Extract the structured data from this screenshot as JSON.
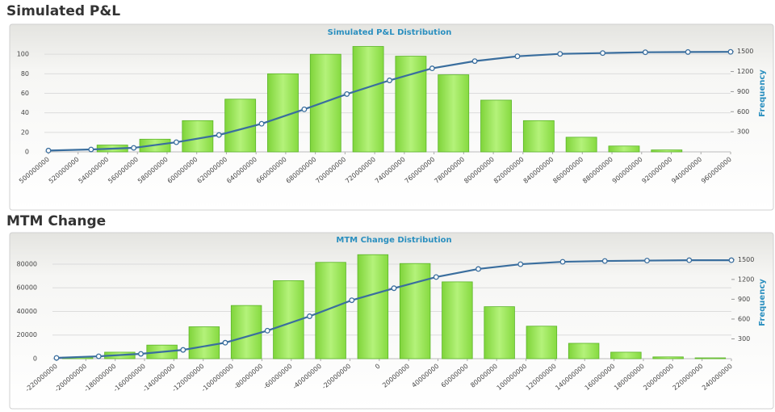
{
  "headings": [
    "Simulated P&L",
    "MTM Change"
  ],
  "chart_data": [
    {
      "type": "histogram",
      "title": "Simulated P&L Distribution",
      "y2_label": "Frequency",
      "bins": [
        500000000,
        528750000,
        557500000,
        586250000,
        615000000,
        643750000,
        672500000,
        701250000,
        730000000,
        758750000,
        787500000,
        816250000,
        845000000,
        873750000,
        902500000,
        931250000,
        960000000
      ],
      "counts": [
        0,
        7,
        13,
        32,
        54,
        80,
        100,
        108,
        98,
        79,
        53,
        32,
        15,
        6,
        2,
        0
      ],
      "color": "#8fe04a",
      "line": {
        "x": [
          500000000,
          528750000,
          557500000,
          586250000,
          615000000,
          643750000,
          672500000,
          701250000,
          730000000,
          758750000,
          787500000,
          816250000,
          845000000,
          873750000,
          902500000,
          931250000,
          960000000
        ],
        "values": [
          20,
          36,
          60,
          144,
          252,
          420,
          636,
          864,
          1068,
          1248,
          1356,
          1428,
          1464,
          1476,
          1488,
          1492,
          1494
        ],
        "color": "#3a6e9e",
        "axis": "y2"
      },
      "xlim": [
        500000000,
        960000000
      ],
      "xticks": [
        500000000,
        520000000,
        540000000,
        560000000,
        580000000,
        600000000,
        620000000,
        640000000,
        660000000,
        680000000,
        700000000,
        720000000,
        740000000,
        760000000,
        780000000,
        800000000,
        820000000,
        840000000,
        860000000,
        880000000,
        900000000,
        920000000,
        940000000,
        960000000
      ],
      "ylim": [
        0,
        120
      ],
      "yticks": [
        0,
        20,
        40,
        60,
        80,
        100
      ],
      "y2lim": [
        0,
        1750
      ],
      "y2ticks": [
        300,
        600,
        900,
        1200,
        1500
      ],
      "grid": true
    },
    {
      "type": "histogram",
      "title": "MTM Change Distribution",
      "y2_label": "Frequency",
      "bins": [
        -220000000,
        -191250000,
        -162500000,
        -133750000,
        -105000000,
        -76250000,
        -47500000,
        -18750000,
        10000000,
        38750000,
        67500000,
        96250000,
        125000000,
        153750000,
        182500000,
        211250000,
        240000000
      ],
      "counts": [
        1200,
        5500,
        11500,
        27000,
        45000,
        66000,
        81500,
        88000,
        80500,
        65000,
        44000,
        27500,
        13000,
        5500,
        1500,
        700
      ],
      "color": "#8fe04a",
      "line": {
        "x": [
          -220000000,
          -191250000,
          -162500000,
          -133750000,
          -105000000,
          -76250000,
          -47500000,
          -18750000,
          10000000,
          38750000,
          67500000,
          96250000,
          125000000,
          153750000,
          182500000,
          211250000,
          240000000
        ],
        "values": [
          12,
          36,
          73,
          133,
          242,
          424,
          642,
          885,
          1067,
          1236,
          1358,
          1430,
          1467,
          1479,
          1485,
          1491,
          1491
        ],
        "color": "#3a6e9e",
        "axis": "y2"
      },
      "xlim": [
        -220000000,
        240000000
      ],
      "xticks": [
        -220000000,
        -200000000,
        -180000000,
        -160000000,
        -140000000,
        -120000000,
        -100000000,
        -80000000,
        -60000000,
        -40000000,
        -20000000,
        0,
        20000000,
        40000000,
        60000000,
        80000000,
        100000000,
        120000000,
        140000000,
        160000000,
        180000000,
        200000000,
        220000000,
        240000000
      ],
      "ylim": [
        0,
        95000
      ],
      "yticks": [
        0,
        20000,
        40000,
        60000,
        80000
      ],
      "y2lim": [
        0,
        1700
      ],
      "y2ticks": [
        300,
        600,
        900,
        1200,
        1500
      ],
      "grid": true
    }
  ]
}
